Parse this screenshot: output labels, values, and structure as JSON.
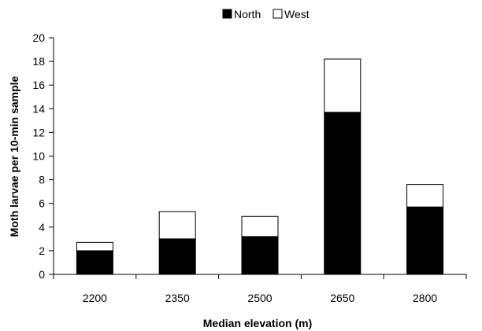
{
  "chart_data": {
    "type": "bar",
    "stacked": true,
    "categories": [
      "2200",
      "2350",
      "2500",
      "2650",
      "2800"
    ],
    "series": [
      {
        "name": "North",
        "values": [
          2.0,
          3.0,
          3.2,
          13.7,
          5.7
        ],
        "color": "#000000"
      },
      {
        "name": "West",
        "values": [
          0.7,
          2.3,
          1.7,
          4.5,
          1.9
        ],
        "color": "#ffffff"
      }
    ],
    "title": "",
    "xlabel": "Median elevation (m)",
    "ylabel": "Moth larvae per 10-min sample",
    "ylim": [
      0,
      20
    ],
    "yticks": [
      0,
      2,
      4,
      6,
      8,
      10,
      12,
      14,
      16,
      18,
      20
    ],
    "grid": false,
    "legend_position": "top"
  }
}
